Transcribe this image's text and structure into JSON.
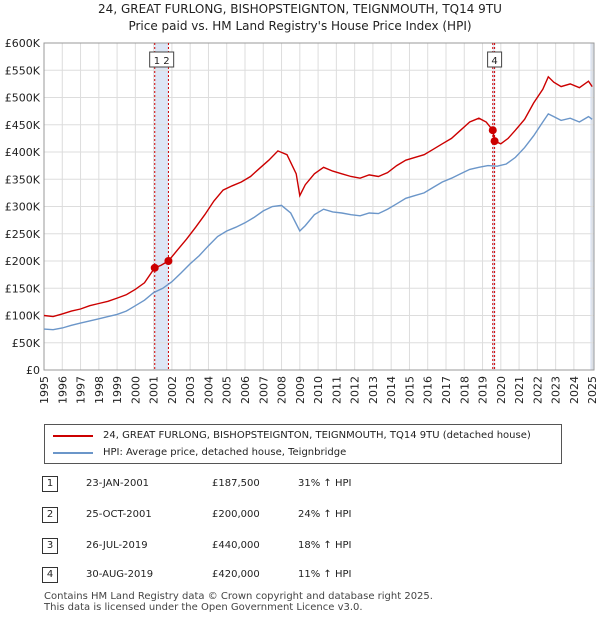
{
  "title_line1": "24, GREAT FURLONG, BISHOPSTEIGNTON, TEIGNMOUTH, TQ14 9TU",
  "title_line2": "Price paid vs. HM Land Registry's House Price Index (HPI)",
  "colors": {
    "red": "#cc0000",
    "blue": "#6b96c9",
    "grid": "#dddddd",
    "band": "#dde6f5"
  },
  "chart_data": {
    "type": "line",
    "xlim": [
      1995,
      2025.1
    ],
    "ylim": [
      0,
      600000
    ],
    "y_ticks": [
      {
        "v": 0,
        "label": "£0"
      },
      {
        "v": 50000,
        "label": "£50K"
      },
      {
        "v": 100000,
        "label": "£100K"
      },
      {
        "v": 150000,
        "label": "£150K"
      },
      {
        "v": 200000,
        "label": "£200K"
      },
      {
        "v": 250000,
        "label": "£250K"
      },
      {
        "v": 300000,
        "label": "£300K"
      },
      {
        "v": 350000,
        "label": "£350K"
      },
      {
        "v": 400000,
        "label": "£400K"
      },
      {
        "v": 450000,
        "label": "£450K"
      },
      {
        "v": 500000,
        "label": "£500K"
      },
      {
        "v": 550000,
        "label": "£550K"
      },
      {
        "v": 600000,
        "label": "£600K"
      }
    ],
    "x_ticks": [
      "1995",
      "1996",
      "1997",
      "1998",
      "1999",
      "2000",
      "2001",
      "2002",
      "2003",
      "2004",
      "2005",
      "2006",
      "2007",
      "2008",
      "2009",
      "2010",
      "2011",
      "2012",
      "2013",
      "2014",
      "2015",
      "2016",
      "2017",
      "2018",
      "2019",
      "2020",
      "2021",
      "2022",
      "2023",
      "2024",
      "2025"
    ],
    "series": [
      {
        "name": "24, GREAT FURLONG, BISHOPSTEIGNTON, TEIGNMOUTH, TQ14 9TU (detached house)",
        "color": "#cc0000",
        "points": [
          [
            1995.0,
            100000
          ],
          [
            1995.5,
            98000
          ],
          [
            1996.0,
            103000
          ],
          [
            1996.5,
            108000
          ],
          [
            1997.0,
            112000
          ],
          [
            1997.5,
            118000
          ],
          [
            1998.0,
            122000
          ],
          [
            1998.5,
            126000
          ],
          [
            1999.0,
            132000
          ],
          [
            1999.5,
            138000
          ],
          [
            2000.0,
            148000
          ],
          [
            2000.5,
            160000
          ],
          [
            2001.06,
            187500
          ],
          [
            2001.4,
            192000
          ],
          [
            2001.81,
            200000
          ],
          [
            2002.3,
            220000
          ],
          [
            2002.8,
            240000
          ],
          [
            2003.3,
            262000
          ],
          [
            2003.8,
            285000
          ],
          [
            2004.3,
            310000
          ],
          [
            2004.8,
            330000
          ],
          [
            2005.3,
            338000
          ],
          [
            2005.8,
            345000
          ],
          [
            2006.3,
            355000
          ],
          [
            2006.8,
            370000
          ],
          [
            2007.3,
            385000
          ],
          [
            2007.8,
            402000
          ],
          [
            2008.3,
            395000
          ],
          [
            2008.8,
            360000
          ],
          [
            2009.0,
            320000
          ],
          [
            2009.3,
            340000
          ],
          [
            2009.8,
            360000
          ],
          [
            2010.3,
            372000
          ],
          [
            2010.8,
            365000
          ],
          [
            2011.3,
            360000
          ],
          [
            2011.8,
            355000
          ],
          [
            2012.3,
            352000
          ],
          [
            2012.8,
            358000
          ],
          [
            2013.3,
            355000
          ],
          [
            2013.8,
            362000
          ],
          [
            2014.3,
            375000
          ],
          [
            2014.8,
            385000
          ],
          [
            2015.3,
            390000
          ],
          [
            2015.8,
            395000
          ],
          [
            2016.3,
            405000
          ],
          [
            2016.8,
            415000
          ],
          [
            2017.3,
            425000
          ],
          [
            2017.8,
            440000
          ],
          [
            2018.3,
            455000
          ],
          [
            2018.8,
            462000
          ],
          [
            2019.2,
            455000
          ],
          [
            2019.56,
            440000
          ],
          [
            2019.66,
            420000
          ],
          [
            2020.0,
            415000
          ],
          [
            2020.4,
            425000
          ],
          [
            2020.8,
            440000
          ],
          [
            2021.3,
            460000
          ],
          [
            2021.8,
            490000
          ],
          [
            2022.3,
            515000
          ],
          [
            2022.6,
            538000
          ],
          [
            2022.9,
            528000
          ],
          [
            2023.3,
            520000
          ],
          [
            2023.8,
            525000
          ],
          [
            2024.3,
            518000
          ],
          [
            2024.8,
            530000
          ],
          [
            2025.0,
            520000
          ]
        ]
      },
      {
        "name": "HPI: Average price, detached house, Teignbridge",
        "color": "#6b96c9",
        "points": [
          [
            1995.0,
            75000
          ],
          [
            1995.5,
            74000
          ],
          [
            1996.0,
            77000
          ],
          [
            1996.5,
            82000
          ],
          [
            1997.0,
            86000
          ],
          [
            1997.5,
            90000
          ],
          [
            1998.0,
            94000
          ],
          [
            1998.5,
            98000
          ],
          [
            1999.0,
            102000
          ],
          [
            1999.5,
            108000
          ],
          [
            2000.0,
            118000
          ],
          [
            2000.5,
            128000
          ],
          [
            2001.0,
            142000
          ],
          [
            2001.5,
            150000
          ],
          [
            2002.0,
            162000
          ],
          [
            2002.5,
            178000
          ],
          [
            2003.0,
            195000
          ],
          [
            2003.5,
            210000
          ],
          [
            2004.0,
            228000
          ],
          [
            2004.5,
            245000
          ],
          [
            2005.0,
            255000
          ],
          [
            2005.5,
            262000
          ],
          [
            2006.0,
            270000
          ],
          [
            2006.5,
            280000
          ],
          [
            2007.0,
            292000
          ],
          [
            2007.5,
            300000
          ],
          [
            2008.0,
            302000
          ],
          [
            2008.5,
            288000
          ],
          [
            2009.0,
            255000
          ],
          [
            2009.3,
            265000
          ],
          [
            2009.8,
            285000
          ],
          [
            2010.3,
            295000
          ],
          [
            2010.8,
            290000
          ],
          [
            2011.3,
            288000
          ],
          [
            2011.8,
            285000
          ],
          [
            2012.3,
            283000
          ],
          [
            2012.8,
            288000
          ],
          [
            2013.3,
            287000
          ],
          [
            2013.8,
            295000
          ],
          [
            2014.3,
            305000
          ],
          [
            2014.8,
            315000
          ],
          [
            2015.3,
            320000
          ],
          [
            2015.8,
            325000
          ],
          [
            2016.3,
            335000
          ],
          [
            2016.8,
            345000
          ],
          [
            2017.3,
            352000
          ],
          [
            2017.8,
            360000
          ],
          [
            2018.3,
            368000
          ],
          [
            2018.8,
            372000
          ],
          [
            2019.3,
            375000
          ],
          [
            2019.8,
            374000
          ],
          [
            2020.3,
            378000
          ],
          [
            2020.8,
            390000
          ],
          [
            2021.3,
            408000
          ],
          [
            2021.8,
            430000
          ],
          [
            2022.3,
            455000
          ],
          [
            2022.6,
            470000
          ],
          [
            2022.9,
            465000
          ],
          [
            2023.3,
            458000
          ],
          [
            2023.8,
            462000
          ],
          [
            2024.3,
            455000
          ],
          [
            2024.8,
            465000
          ],
          [
            2025.0,
            460000
          ]
        ]
      }
    ],
    "sales": [
      {
        "num": "1",
        "x": 2001.06,
        "price": 187500
      },
      {
        "num": "2",
        "x": 2001.81,
        "price": 200000
      },
      {
        "num": "3",
        "x": 2019.56,
        "price": 440000
      },
      {
        "num": "4",
        "x": 2019.66,
        "price": 420000
      }
    ],
    "markers": [
      {
        "label": "1 2",
        "x": 2001.44
      },
      {
        "label": "4",
        "x": 2019.66
      }
    ],
    "bands": [
      [
        2001.06,
        2001.81
      ],
      [
        2019.56,
        2019.66
      ],
      [
        2024.9,
        2025.1
      ]
    ]
  },
  "legend": {
    "red_label": "24, GREAT FURLONG, BISHOPSTEIGNTON, TEIGNMOUTH, TQ14 9TU (detached house)",
    "blue_label": "HPI: Average price, detached house, Teignbridge"
  },
  "transactions": [
    {
      "num": "1",
      "date": "23-JAN-2001",
      "price": "£187,500",
      "hpi": "31% ↑ HPI"
    },
    {
      "num": "2",
      "date": "25-OCT-2001",
      "price": "£200,000",
      "hpi": "24% ↑ HPI"
    },
    {
      "num": "3",
      "date": "26-JUL-2019",
      "price": "£440,000",
      "hpi": "18% ↑ HPI"
    },
    {
      "num": "4",
      "date": "30-AUG-2019",
      "price": "£420,000",
      "hpi": "11% ↑ HPI"
    }
  ],
  "footer": {
    "line1": "Contains HM Land Registry data © Crown copyright and database right 2025.",
    "line2": "This data is licensed under the Open Government Licence v3.0."
  }
}
